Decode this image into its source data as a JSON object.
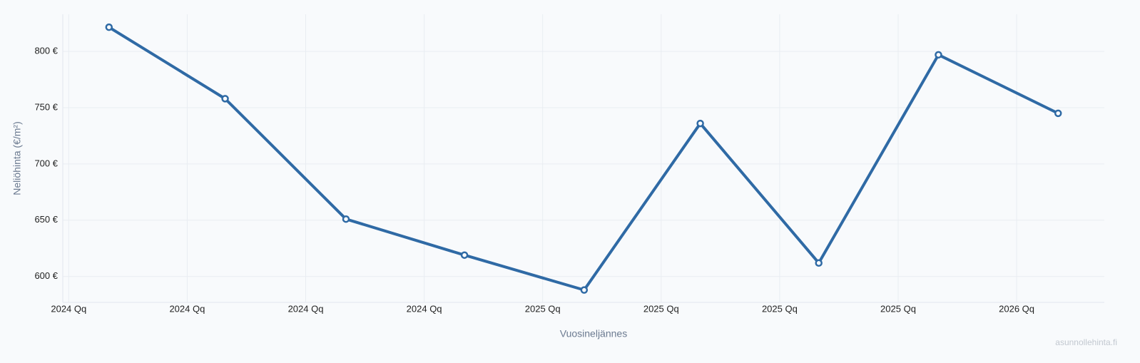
{
  "chart_data": {
    "type": "line",
    "y_label": "Neliöhinta (€/m²)",
    "x_label": "Vuosineljännes",
    "watermark": "asunnollehinta.fi",
    "x": [
      0.34,
      1.32,
      2.34,
      3.34,
      4.35,
      5.33,
      6.33,
      7.34,
      8.35
    ],
    "series": [
      {
        "name": "Neliöhinta",
        "color": "#2f6aa5",
        "values": [
          821.5,
          758,
          651,
          619,
          588,
          736,
          612,
          797,
          745
        ]
      }
    ],
    "xlim": [
      -0.05,
      8.74
    ],
    "xticks": [
      {
        "value": 0,
        "label": "2024 Qq"
      },
      {
        "value": 1,
        "label": "2024 Qq"
      },
      {
        "value": 2,
        "label": "2024 Qq"
      },
      {
        "value": 3,
        "label": "2024 Qq"
      },
      {
        "value": 4,
        "label": "2025 Qq"
      },
      {
        "value": 5,
        "label": "2025 Qq"
      },
      {
        "value": 6,
        "label": "2025 Qq"
      },
      {
        "value": 7,
        "label": "2025 Qq"
      },
      {
        "value": 8,
        "label": "2026 Qq"
      }
    ],
    "ylim": [
      577,
      833
    ],
    "yticks": [
      {
        "value": 600,
        "label": "600 €"
      },
      {
        "value": 650,
        "label": "650 €"
      },
      {
        "value": 700,
        "label": "700 €"
      },
      {
        "value": 750,
        "label": "750 €"
      },
      {
        "value": 800,
        "label": "800 €"
      }
    ],
    "grid": true
  }
}
